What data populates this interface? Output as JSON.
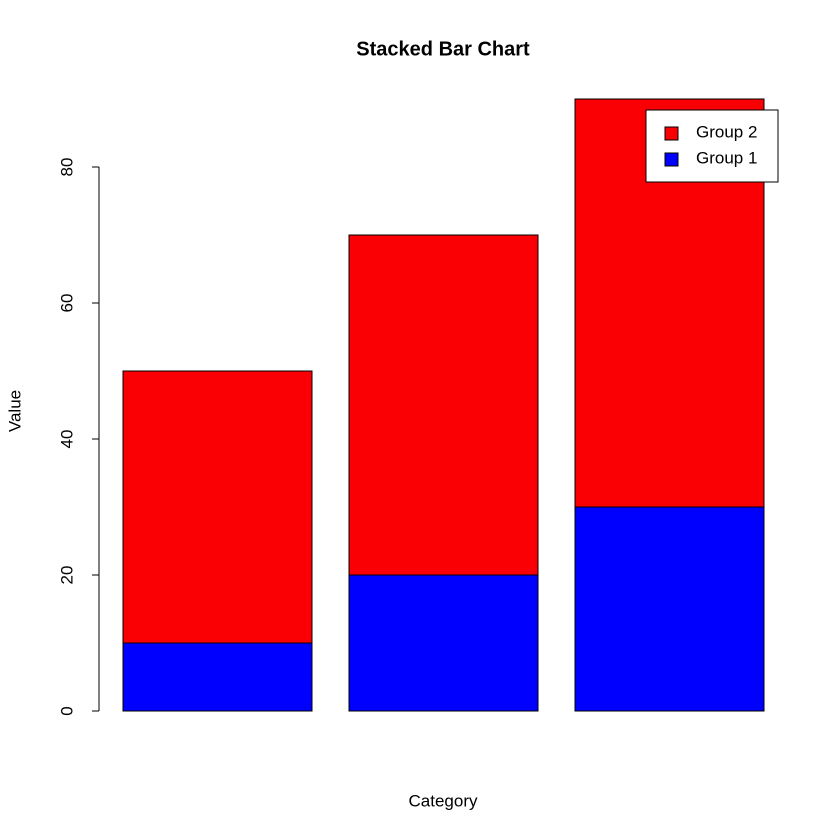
{
  "chart_data": {
    "type": "stacked_bar",
    "title": "Stacked Bar Chart",
    "x_label": "Category",
    "y_label": "Value",
    "categories": [
      null,
      null,
      null
    ],
    "series": [
      {
        "name": "Group 1",
        "color": "#0000ff",
        "values": [
          10,
          20,
          30
        ]
      },
      {
        "name": "Group 2",
        "color": "#fa0005",
        "values": [
          40,
          50,
          60
        ]
      }
    ],
    "ylim": [
      0,
      90
    ],
    "yticks": [
      0,
      20,
      40,
      60,
      80
    ],
    "grid": false,
    "legend": "topright"
  }
}
